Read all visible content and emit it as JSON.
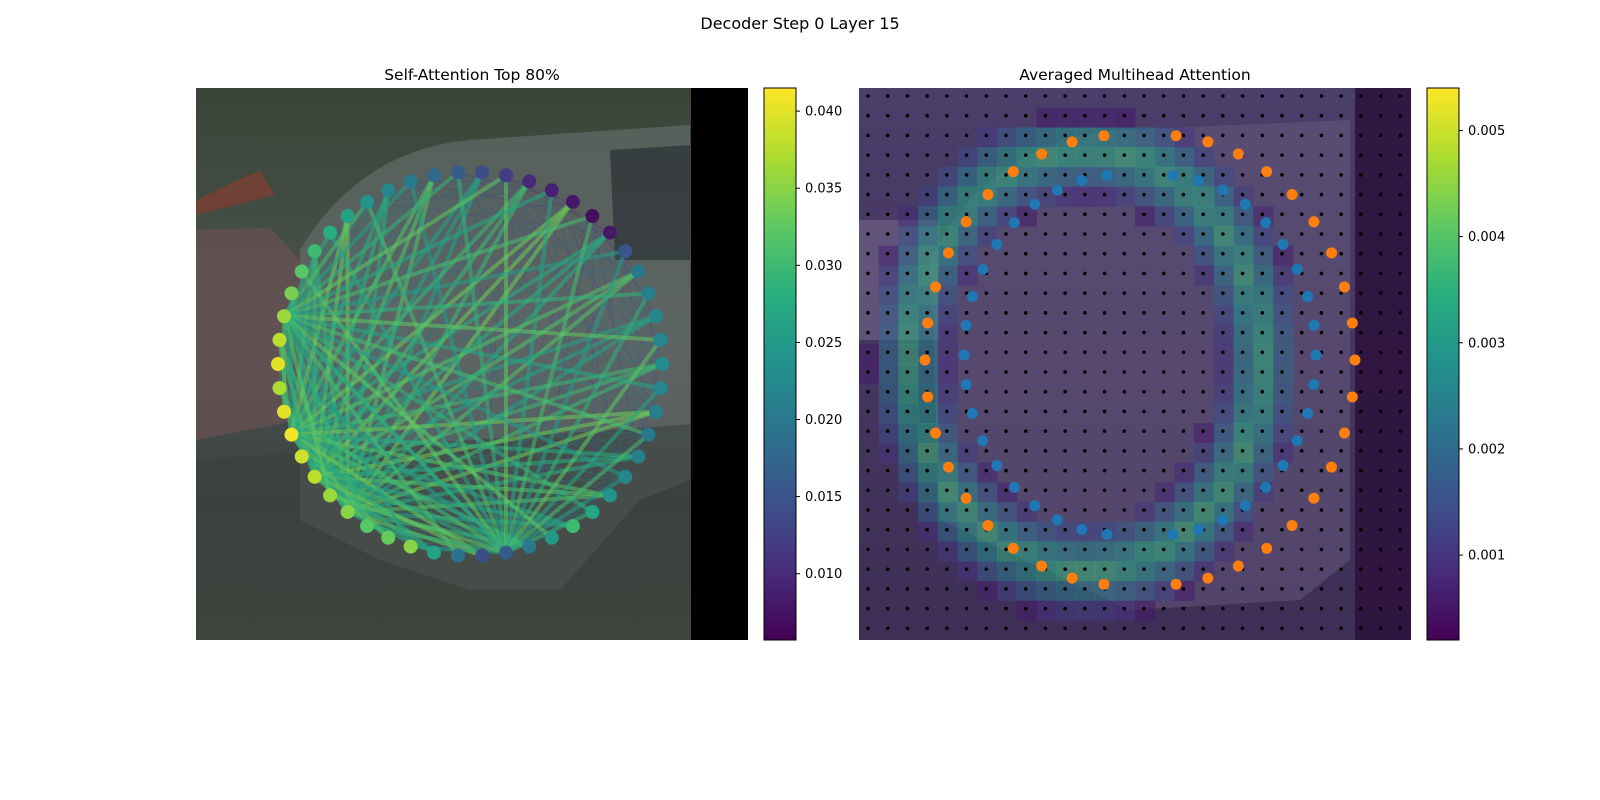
{
  "figure": {
    "title": "Decoder Step 0 Layer 15"
  },
  "chart_data": [
    {
      "type": "scatter",
      "title": "Self-Attention Top 80%",
      "description_kind": "attention graph of points on a circle over photo",
      "colormap": "viridis",
      "colorbar": {
        "range": [
          0.0057,
          0.0415
        ],
        "ticks": [
          "0.010",
          "0.015",
          "0.020",
          "0.025",
          "0.030",
          "0.035",
          "0.040"
        ]
      },
      "node_values": [
        0.04,
        0.038,
        0.036,
        0.034,
        0.032,
        0.03,
        0.028,
        0.026,
        0.024,
        0.022,
        0.02,
        0.018,
        0.016,
        0.014,
        0.012,
        0.01,
        0.009,
        0.008,
        0.007,
        0.008,
        0.015,
        0.02,
        0.021,
        0.022,
        0.022,
        0.023,
        0.022,
        0.021,
        0.02,
        0.021,
        0.022,
        0.024,
        0.027,
        0.03,
        0.025,
        0.02,
        0.016,
        0.014,
        0.019,
        0.026,
        0.035,
        0.033,
        0.032,
        0.035,
        0.036,
        0.038,
        0.039,
        0.041,
        0.04,
        0.037
      ]
    },
    {
      "type": "heatmap",
      "title": "Averaged Multihead Attention",
      "colormap": "viridis",
      "colorbar": {
        "range": [
          0.0002,
          0.0054
        ],
        "ticks": [
          "0.001",
          "0.002",
          "0.003",
          "0.004",
          "0.005"
        ]
      },
      "series": [
        {
          "color": "#ff7f0e",
          "count": 38
        },
        {
          "color": "#1f77b4",
          "count": 38
        }
      ]
    }
  ]
}
